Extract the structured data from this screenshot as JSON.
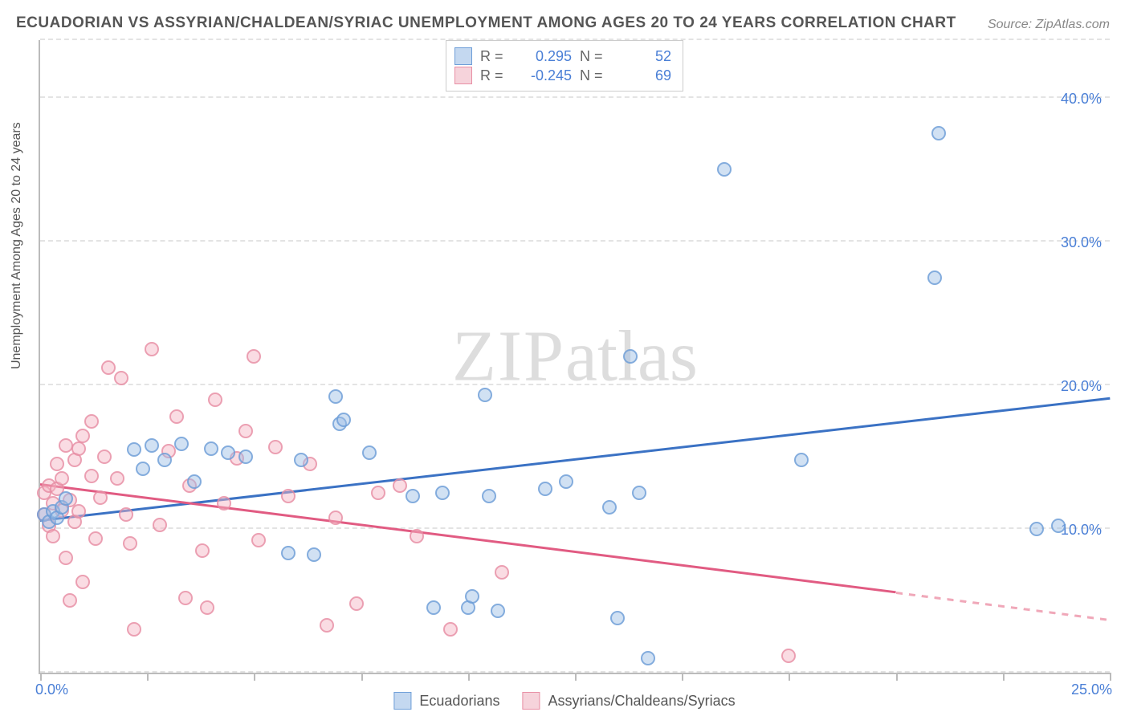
{
  "title": "ECUADORIAN VS ASSYRIAN/CHALDEAN/SYRIAC UNEMPLOYMENT AMONG AGES 20 TO 24 YEARS CORRELATION CHART",
  "source": "Source: ZipAtlas.com",
  "ylabel_text": "Unemployment Among Ages 20 to 24 years",
  "watermark_a": "ZIP",
  "watermark_b": "atlas",
  "chart": {
    "type": "scatter",
    "xlim": [
      0,
      25
    ],
    "ylim": [
      0,
      44
    ],
    "x_ticks": [
      0,
      2.5,
      5,
      7.5,
      10,
      12.5,
      15,
      17.5,
      20,
      22.5,
      25
    ],
    "x_labels": [
      {
        "v": 0,
        "t": "0.0%"
      },
      {
        "v": 25,
        "t": "25.0%"
      }
    ],
    "y_labels": [
      {
        "v": 10,
        "t": "10.0%"
      },
      {
        "v": 20,
        "t": "20.0%"
      },
      {
        "v": 30,
        "t": "30.0%"
      },
      {
        "v": 40,
        "t": "40.0%"
      }
    ],
    "grid_y": [
      0,
      10,
      20,
      30,
      40,
      44
    ],
    "grid_color": "#e3e3e3",
    "axis_color": "#bbbbbb",
    "label_color": "#4a7fd6",
    "title_color": "#555555",
    "title_fontsize": 19,
    "axis_fontsize": 18,
    "marker_radius": 9,
    "background_color": "#ffffff",
    "series": [
      {
        "name": "Ecuadorians",
        "color_fill": "rgba(157,190,230,0.55)",
        "color_stroke": "#6e9ed8",
        "R": "0.295",
        "N": "52",
        "trend": {
          "x1": 0,
          "y1": 10.5,
          "x2": 25,
          "y2": 19.0,
          "color": "#3b72c4"
        },
        "points": [
          [
            0.1,
            11
          ],
          [
            0.2,
            10.5
          ],
          [
            0.3,
            11.2
          ],
          [
            0.4,
            10.8
          ],
          [
            0.5,
            11.5
          ],
          [
            0.6,
            12.1
          ],
          [
            2.2,
            15.5
          ],
          [
            2.4,
            14.2
          ],
          [
            2.6,
            15.8
          ],
          [
            2.9,
            14.8
          ],
          [
            3.3,
            15.9
          ],
          [
            3.6,
            13.3
          ],
          [
            4.0,
            15.6
          ],
          [
            4.4,
            15.3
          ],
          [
            4.8,
            15.0
          ],
          [
            5.8,
            8.3
          ],
          [
            6.1,
            14.8
          ],
          [
            6.4,
            8.2
          ],
          [
            6.9,
            19.2
          ],
          [
            7.0,
            17.3
          ],
          [
            7.1,
            17.6
          ],
          [
            7.7,
            15.3
          ],
          [
            8.7,
            12.3
          ],
          [
            9.4,
            12.5
          ],
          [
            9.2,
            4.5
          ],
          [
            10.0,
            4.5
          ],
          [
            10.1,
            5.3
          ],
          [
            10.4,
            19.3
          ],
          [
            10.5,
            12.3
          ],
          [
            10.7,
            4.3
          ],
          [
            11.8,
            12.8
          ],
          [
            12.3,
            13.3
          ],
          [
            13.3,
            11.5
          ],
          [
            13.5,
            3.8
          ],
          [
            13.8,
            22.0
          ],
          [
            14.0,
            12.5
          ],
          [
            14.2,
            1.0
          ],
          [
            16.0,
            35.0
          ],
          [
            17.8,
            14.8
          ],
          [
            20.9,
            27.5
          ],
          [
            21.0,
            37.5
          ],
          [
            23.3,
            10.0
          ],
          [
            23.8,
            10.2
          ]
        ]
      },
      {
        "name": "Assyrians/Chaldeans/Syriacs",
        "color_fill": "rgba(244,180,195,0.55)",
        "color_stroke": "#e88fa5",
        "R": "-0.245",
        "N": "69",
        "trend": {
          "x1": 0,
          "y1": 13.0,
          "x2": 20,
          "y2": 5.5,
          "color": "#e15b82"
        },
        "trend_extrap": {
          "x1": 20,
          "y1": 5.5,
          "x2": 25,
          "y2": 3.6
        },
        "points": [
          [
            0.1,
            11.0
          ],
          [
            0.1,
            12.5
          ],
          [
            0.2,
            10.2
          ],
          [
            0.2,
            13.0
          ],
          [
            0.3,
            11.8
          ],
          [
            0.3,
            9.5
          ],
          [
            0.4,
            12.8
          ],
          [
            0.4,
            14.5
          ],
          [
            0.5,
            11.3
          ],
          [
            0.5,
            13.5
          ],
          [
            0.6,
            15.8
          ],
          [
            0.6,
            8.0
          ],
          [
            0.7,
            12.0
          ],
          [
            0.7,
            5.0
          ],
          [
            0.8,
            10.5
          ],
          [
            0.8,
            14.8
          ],
          [
            0.9,
            15.6
          ],
          [
            0.9,
            11.2
          ],
          [
            1.0,
            16.5
          ],
          [
            1.0,
            6.3
          ],
          [
            1.2,
            13.7
          ],
          [
            1.2,
            17.5
          ],
          [
            1.3,
            9.3
          ],
          [
            1.4,
            12.2
          ],
          [
            1.5,
            15.0
          ],
          [
            1.6,
            21.2
          ],
          [
            1.8,
            13.5
          ],
          [
            1.9,
            20.5
          ],
          [
            2.0,
            11.0
          ],
          [
            2.1,
            9.0
          ],
          [
            2.2,
            3.0
          ],
          [
            2.6,
            22.5
          ],
          [
            2.8,
            10.3
          ],
          [
            3.0,
            15.4
          ],
          [
            3.2,
            17.8
          ],
          [
            3.4,
            5.2
          ],
          [
            3.5,
            13.0
          ],
          [
            3.8,
            8.5
          ],
          [
            3.9,
            4.5
          ],
          [
            4.1,
            19.0
          ],
          [
            4.3,
            11.8
          ],
          [
            4.6,
            14.9
          ],
          [
            4.8,
            16.8
          ],
          [
            5.0,
            22.0
          ],
          [
            5.1,
            9.2
          ],
          [
            5.5,
            15.7
          ],
          [
            5.8,
            12.3
          ],
          [
            6.3,
            14.5
          ],
          [
            6.7,
            3.3
          ],
          [
            6.9,
            10.8
          ],
          [
            7.4,
            4.8
          ],
          [
            7.9,
            12.5
          ],
          [
            8.4,
            13.0
          ],
          [
            8.8,
            9.5
          ],
          [
            9.6,
            3.0
          ],
          [
            10.8,
            7.0
          ],
          [
            17.5,
            1.2
          ]
        ]
      }
    ]
  },
  "legend_top": {
    "R_label": "R =",
    "N_label": "N ="
  },
  "legend_bottom": {
    "items": [
      "Ecuadorians",
      "Assyrians/Chaldeans/Syriacs"
    ]
  }
}
